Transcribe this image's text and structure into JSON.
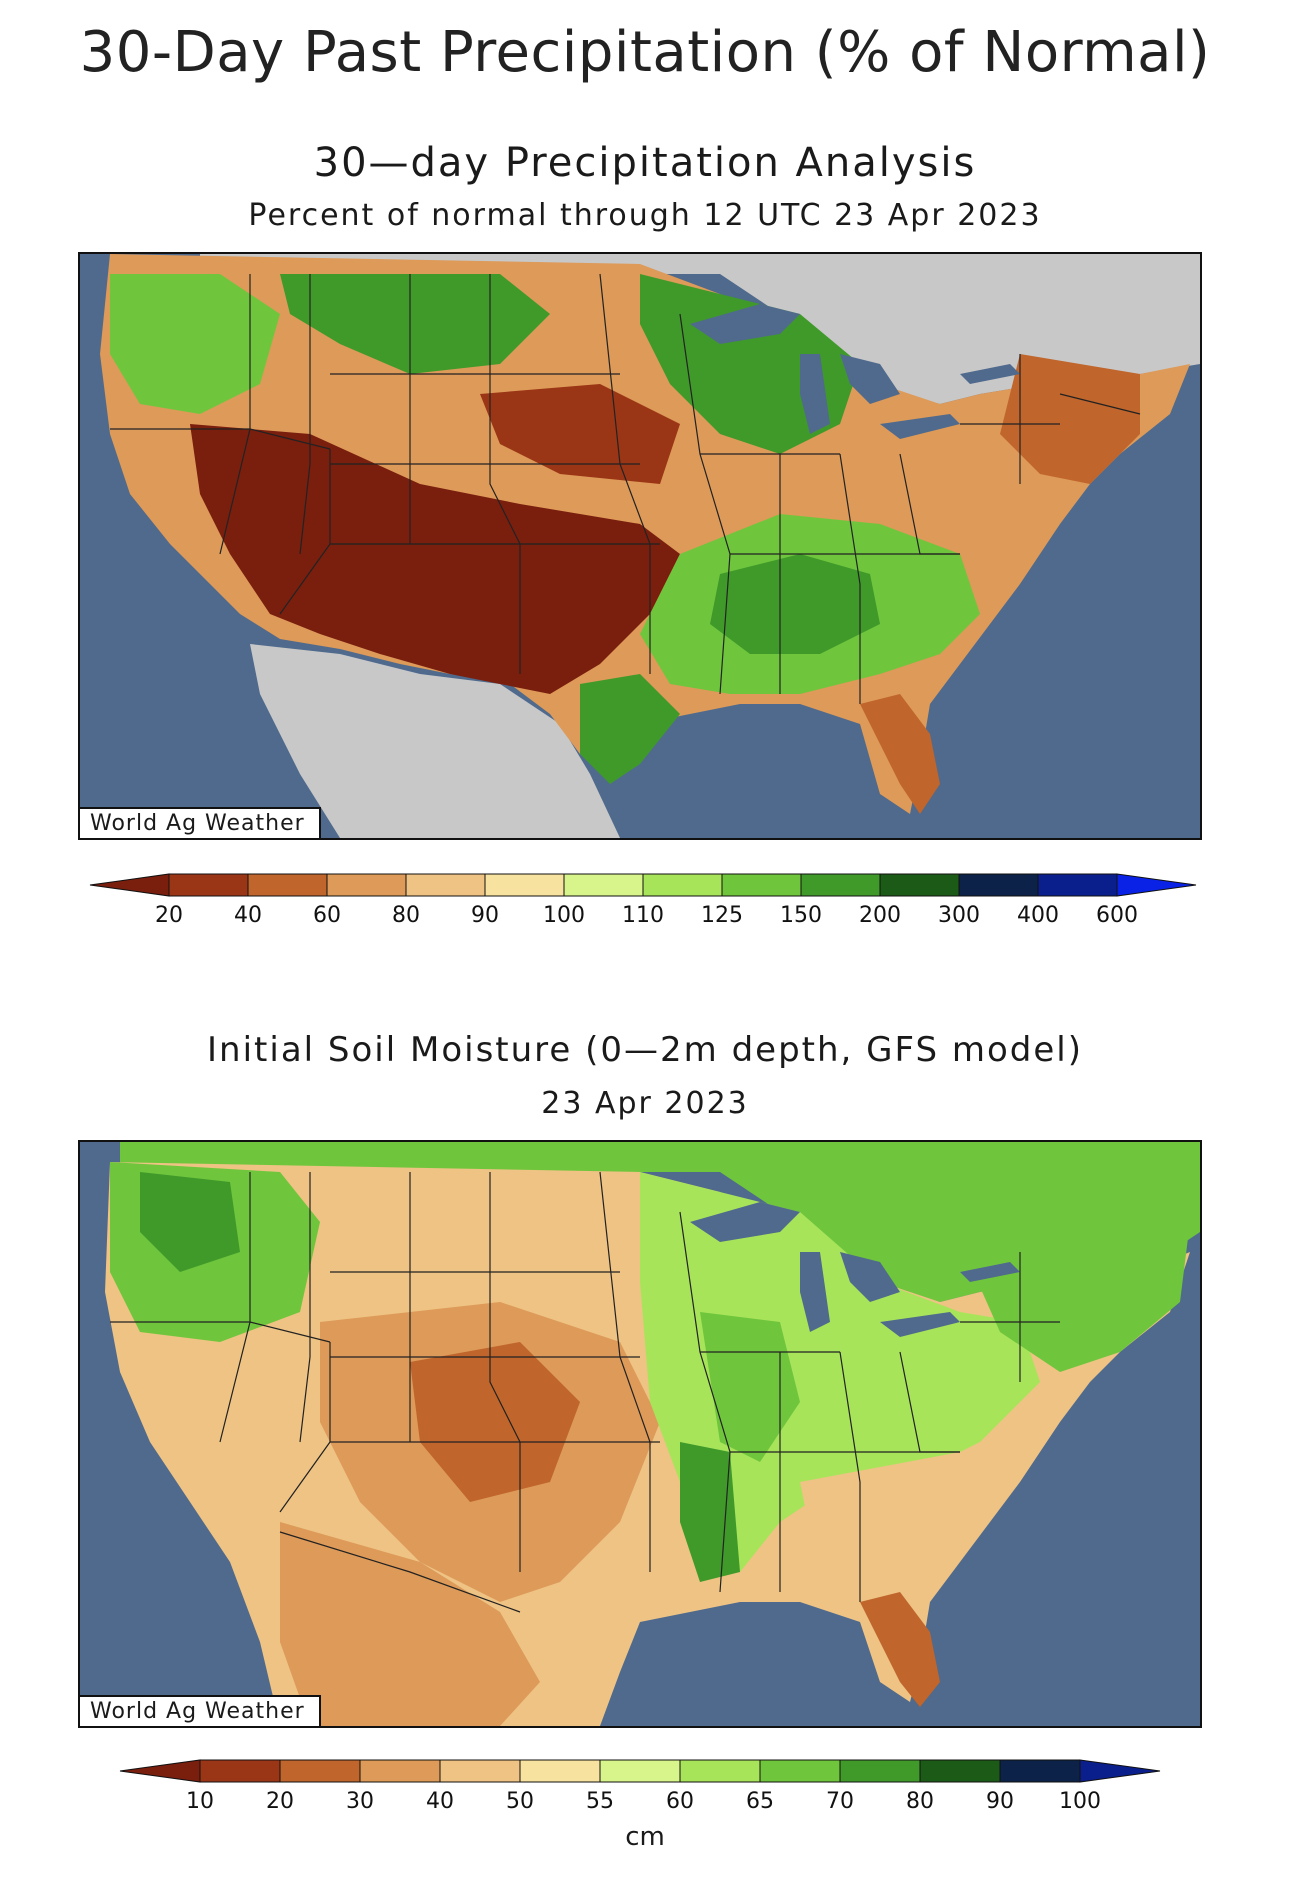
{
  "page": {
    "title": "30-Day Past Precipitation (% of Normal)"
  },
  "maps": [
    {
      "title": "30—day Precipitation Analysis",
      "subtitle": "Percent of normal through 12 UTC 23 Apr 2023",
      "watermark": "World Ag Weather",
      "legend": {
        "unit": "",
        "ticks": [
          "20",
          "40",
          "60",
          "80",
          "90",
          "100",
          "110",
          "125",
          "150",
          "200",
          "300",
          "400",
          "600"
        ],
        "colors": [
          "#7a1e0e",
          "#9a3516",
          "#c0652b",
          "#dd9a58",
          "#eec384",
          "#f7e2a0",
          "#d8f58c",
          "#a8e45a",
          "#6fc63c",
          "#3f9a2a",
          "#1c5a18",
          "#0c2248",
          "#0a1f8c",
          "#0a22e6"
        ]
      }
    },
    {
      "title": "Initial Soil Moisture (0—2m depth, GFS model)",
      "subtitle": "23 Apr 2023",
      "watermark": "World Ag Weather",
      "legend": {
        "unit": "cm",
        "ticks": [
          "10",
          "20",
          "30",
          "40",
          "50",
          "55",
          "60",
          "65",
          "70",
          "80",
          "90",
          "100"
        ],
        "colors": [
          "#7a1e0e",
          "#9a3516",
          "#c0652b",
          "#dd9a58",
          "#eec384",
          "#f7e2a0",
          "#d8f58c",
          "#a8e45a",
          "#6fc63c",
          "#3f9a2a",
          "#1c5a18",
          "#0c2248",
          "#0a1f8c"
        ]
      }
    }
  ],
  "colors": {
    "ocean": "#4f6a8c",
    "land_outside": "#c8c8c8",
    "dry": "#7a1e0e",
    "wet": "#3f9a2a"
  }
}
